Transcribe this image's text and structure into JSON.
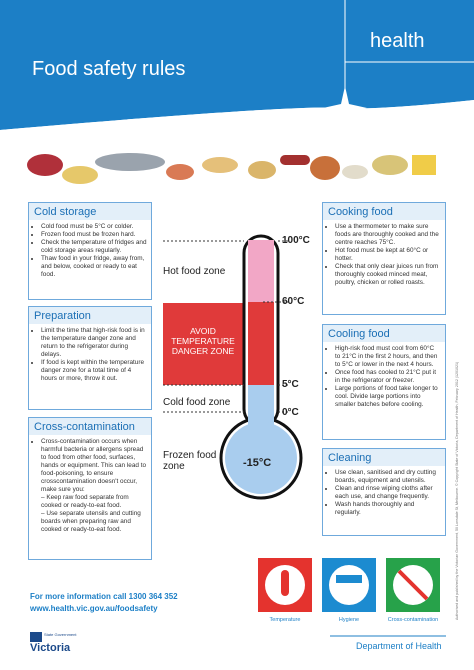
{
  "header": {
    "brand": "health",
    "title": "Food safety rules"
  },
  "left": [
    {
      "title": "Cold storage",
      "items": [
        "Cold food must be 5°C or colder.",
        "Frozen food must be frozen hard.",
        "Check the temperature of fridges and cold storage areas regularly.",
        "Thaw food in your fridge, away from, and below, cooked or ready to eat food."
      ]
    },
    {
      "title": "Preparation",
      "items": [
        "Limit the time that high-risk food is in the temperature danger zone and return to the refrigerator during delays.",
        "If food is kept within the temperature danger zone for a total time of 4 hours or more, throw it out."
      ]
    },
    {
      "title": "Cross-contamination",
      "items": [
        "Cross-contamination occurs when harmful bacteria or allergens spread to food from other food, surfaces, hands or equipment. This can lead to food-poisoning, to ensure crosscontamination doesn't occur, make sure you:"
      ],
      "subitems": [
        "Keep raw food separate from cooked or ready-to-eat food.",
        "Use separate utensils and cutting boards when preparing raw and cooked or ready-to-eat food."
      ]
    }
  ],
  "right": [
    {
      "title": "Cooking food",
      "items": [
        "Use a thermometer to make sure foods are thoroughly cooked and the centre reaches 75°C.",
        "Hot food must be kept at 60°C or hotter.",
        "Check that only clear juices run from thoroughly cooked minced meat, poultry, chicken or rolled roasts."
      ]
    },
    {
      "title": "Cooling food",
      "items": [
        "High-risk food must cool from 60°C to 21°C in the first 2 hours, and then to 5°C or lower in the next 4 hours.",
        "Once food has cooled to 21°C put it in the refrigerator or freezer.",
        "Large portions of food take longer to cool. Divide large portions into smaller batches before cooling."
      ]
    },
    {
      "title": "Cleaning",
      "items": [
        "Use clean, sanitised and dry cutting boards, equipment and utensils.",
        "Clean and rinse wiping cloths after each use, and change frequently.",
        "Wash hands thoroughly and regularly."
      ]
    }
  ],
  "thermometer": {
    "temps": [
      "100°C",
      "60°C",
      "5°C",
      "0°C",
      "-15°C"
    ],
    "zones": [
      "Hot food zone",
      "AVOID TEMPERATURE DANGER ZONE",
      "Cold food zone",
      "Frozen food zone"
    ]
  },
  "footer": {
    "info": [
      "For more information call 1300 364 352",
      "www.health.vic.gov.au/foodsafety"
    ],
    "icons": [
      "Temperature",
      "Hygiene",
      "Cross-contamination"
    ],
    "department": "Department of Health",
    "logo": [
      "State Government",
      "Victoria"
    ],
    "legal": "Authorised and published by the Victorian Government, 50 Lonsdale St, Melbourne. © Copyright State of Victoria, Department of Health, February 2012 (1201021)"
  }
}
